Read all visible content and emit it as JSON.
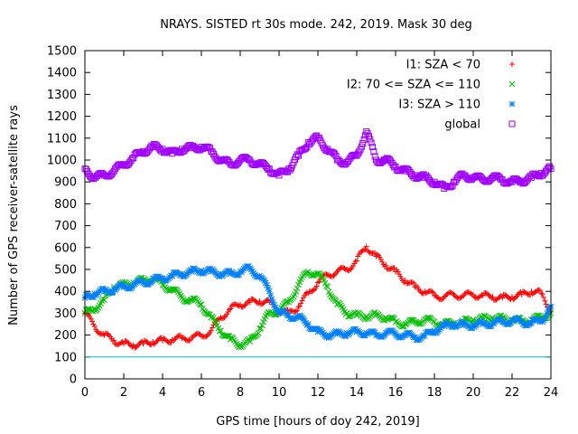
{
  "chart_data": {
    "type": "scatter",
    "title": "NRAYS. SISTED rt 30s mode. 242, 2019. Mask 30 deg",
    "xlabel": "GPS time [hours of doy 242, 2019]",
    "ylabel": "Number of GPS receiver-satellite rays",
    "xlim": [
      0,
      24
    ],
    "ylim": [
      0,
      1500
    ],
    "xticks": [
      0,
      2,
      4,
      6,
      8,
      10,
      12,
      14,
      16,
      18,
      20,
      22,
      24
    ],
    "yticks": [
      0,
      100,
      200,
      300,
      400,
      500,
      600,
      700,
      800,
      900,
      1000,
      1100,
      1200,
      1300,
      1400,
      1500
    ],
    "grid": false,
    "legend_position": "top-right",
    "reference_line": {
      "y": 100,
      "color": "#00c0c0"
    },
    "series": [
      {
        "name": "I1: SZA < 70",
        "marker": "plus",
        "color": "#ff0000",
        "x": [
          0,
          0.5,
          1,
          1.5,
          2,
          2.5,
          3,
          3.5,
          4,
          4.5,
          5,
          5.5,
          6,
          6.5,
          7,
          7.5,
          8,
          8.5,
          9,
          9.5,
          10,
          10.5,
          11,
          11.5,
          12,
          12.5,
          13,
          13.5,
          14,
          14.5,
          15,
          15.5,
          16,
          16.5,
          17,
          17.5,
          18,
          18.5,
          19,
          19.5,
          20,
          20.5,
          21,
          21.5,
          22,
          22.5,
          23,
          23.5,
          24
        ],
        "y": [
          300,
          240,
          200,
          175,
          160,
          155,
          160,
          170,
          175,
          180,
          185,
          190,
          195,
          220,
          280,
          320,
          340,
          350,
          355,
          350,
          310,
          300,
          330,
          390,
          440,
          475,
          490,
          500,
          540,
          605,
          560,
          520,
          490,
          450,
          420,
          400,
          380,
          375,
          385,
          380,
          385,
          380,
          375,
          370,
          375,
          385,
          400,
          390,
          310
        ]
      },
      {
        "name": "I2: 70 <= SZA <= 110",
        "marker": "cross",
        "color": "#00c000",
        "x": [
          0,
          0.5,
          1,
          1.5,
          2,
          2.5,
          3,
          3.5,
          4,
          4.5,
          5,
          5.5,
          6,
          6.5,
          7,
          7.5,
          8,
          8.5,
          9,
          9.5,
          10,
          10.5,
          11,
          11.5,
          12,
          12.5,
          13,
          13.5,
          14,
          14.5,
          15,
          15.5,
          16,
          16.5,
          17,
          17.5,
          18,
          18.5,
          19,
          19.5,
          20,
          20.5,
          21,
          21.5,
          22,
          22.5,
          23,
          23.5,
          24
        ],
        "y": [
          300,
          320,
          360,
          420,
          430,
          440,
          450,
          460,
          430,
          410,
          370,
          360,
          340,
          280,
          220,
          180,
          155,
          170,
          230,
          300,
          310,
          350,
          430,
          490,
          480,
          420,
          340,
          300,
          290,
          285,
          290,
          280,
          260,
          250,
          260,
          270,
          260,
          250,
          255,
          260,
          270,
          275,
          280,
          275,
          270,
          265,
          270,
          280,
          300
        ]
      },
      {
        "name": "I3: SZA > 110",
        "marker": "star",
        "color": "#0080ff",
        "x": [
          0,
          0.5,
          1,
          1.5,
          2,
          2.5,
          3,
          3.5,
          4,
          4.5,
          5,
          5.5,
          6,
          6.5,
          7,
          7.5,
          8,
          8.5,
          9,
          9.5,
          10,
          10.5,
          11,
          11.5,
          12,
          12.5,
          13,
          13.5,
          14,
          14.5,
          15,
          15.5,
          16,
          16.5,
          17,
          17.5,
          18,
          18.5,
          19,
          19.5,
          20,
          20.5,
          21,
          21.5,
          22,
          22.5,
          23,
          23.5,
          24
        ],
        "y": [
          370,
          390,
          400,
          410,
          420,
          430,
          440,
          450,
          460,
          470,
          480,
          490,
          495,
          490,
          480,
          480,
          490,
          505,
          470,
          400,
          300,
          290,
          280,
          250,
          215,
          200,
          205,
          210,
          215,
          210,
          200,
          210,
          205,
          200,
          190,
          195,
          220,
          240,
          250,
          245,
          245,
          250,
          255,
          260,
          265,
          260,
          255,
          265,
          330
        ]
      },
      {
        "name": "global",
        "marker": "square",
        "color": "#a000ff",
        "x": [
          0,
          0.5,
          1,
          1.5,
          2,
          2.5,
          3,
          3.5,
          4,
          4.5,
          5,
          5.5,
          6,
          6.5,
          7,
          7.5,
          8,
          8.5,
          9,
          9.5,
          10,
          10.5,
          11,
          11.5,
          12,
          12.5,
          13,
          13.5,
          14,
          14.5,
          15,
          15.5,
          16,
          16.5,
          17,
          17.5,
          18,
          18.5,
          19,
          19.5,
          20,
          20.5,
          21,
          21.5,
          22,
          22.5,
          23,
          23.5,
          24
        ],
        "y": [
          960,
          920,
          930,
          950,
          980,
          1010,
          1040,
          1060,
          1050,
          1030,
          1050,
          1055,
          1060,
          1040,
          1000,
          980,
          1000,
          1000,
          980,
          960,
          930,
          960,
          1020,
          1080,
          1100,
          1050,
          1000,
          990,
          1020,
          1130,
          1000,
          1000,
          970,
          950,
          930,
          920,
          900,
          870,
          900,
          930,
          920,
          910,
          920,
          910,
          900,
          905,
          920,
          940,
          960
        ]
      }
    ]
  }
}
